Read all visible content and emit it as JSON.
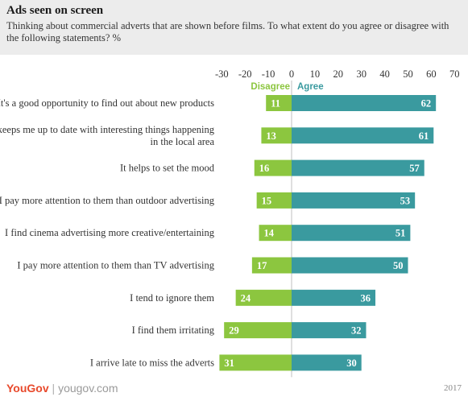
{
  "header": {
    "title": "Ads seen on screen",
    "subtitle": "Thinking about commercial adverts that are shown before films. To what extent do you agree or disagree with the following statements? %"
  },
  "footer": {
    "logo_text": "YouGov",
    "separator": "|",
    "url": "yougov.com",
    "year": "2017"
  },
  "chart_data": {
    "type": "bar",
    "orientation": "horizontal-diverging",
    "xlim": [
      -30,
      70
    ],
    "ticks": [
      -30,
      -20,
      -10,
      0,
      10,
      20,
      30,
      40,
      50,
      60,
      70
    ],
    "categories": [
      [
        "It's a good opportunity to find out about new products"
      ],
      [
        "It keeps me up to date with interesting things happening",
        "in the local area"
      ],
      [
        "It helps to set the mood"
      ],
      [
        "I pay more attention to them than outdoor advertising"
      ],
      [
        "I find cinema advertising more creative/entertaining"
      ],
      [
        "I pay more attention to them than TV advertising"
      ],
      [
        "I tend to ignore them"
      ],
      [
        "I find them irritating"
      ],
      [
        "I arrive late to miss the adverts"
      ]
    ],
    "series": [
      {
        "name": "Disagree",
        "color": "#8cc63f",
        "values": [
          11,
          13,
          16,
          15,
          14,
          17,
          24,
          29,
          31
        ]
      },
      {
        "name": "Agree",
        "color": "#3a9a9f",
        "values": [
          62,
          61,
          57,
          53,
          51,
          50,
          36,
          32,
          30
        ]
      }
    ],
    "grid": false,
    "legend_position": "top, beside zero line"
  }
}
